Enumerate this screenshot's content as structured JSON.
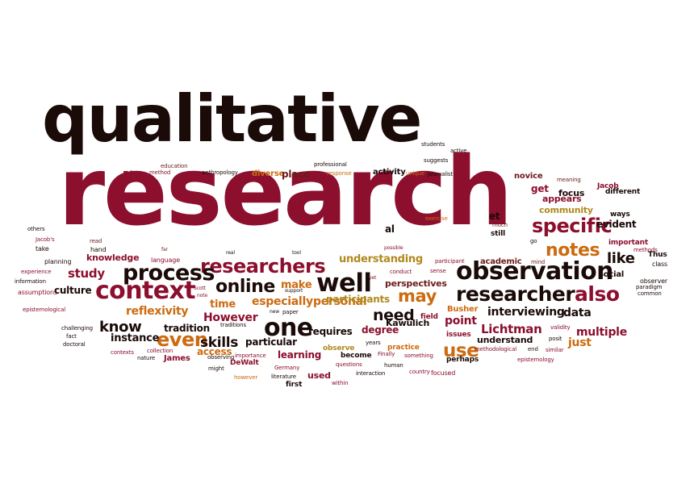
{
  "palette": {
    "dark": "#1a0a08",
    "crimson": "#8c0f2e",
    "darkred": "#6e1a1a",
    "orange": "#cc6b10",
    "gold": "#b08a1e",
    "brown": "#5a2a10"
  },
  "words": [
    {
      "text": "qualitative",
      "color": "dark"
    },
    {
      "text": "research",
      "color": "crimson"
    },
    {
      "text": "observation",
      "color": "dark"
    },
    {
      "text": "researchers",
      "color": "crimson"
    },
    {
      "text": "context",
      "color": "crimson"
    },
    {
      "text": "process",
      "color": "dark"
    },
    {
      "text": "researcher",
      "color": "dark"
    },
    {
      "text": "well",
      "color": "dark"
    },
    {
      "text": "online",
      "color": "dark"
    },
    {
      "text": "specific",
      "color": "crimson"
    },
    {
      "text": "notes",
      "color": "orange"
    },
    {
      "text": "also",
      "color": "crimson"
    },
    {
      "text": "may",
      "color": "orange"
    },
    {
      "text": "one",
      "color": "dark"
    },
    {
      "text": "even",
      "color": "orange"
    },
    {
      "text": "use",
      "color": "orange"
    },
    {
      "text": "need",
      "color": "dark"
    },
    {
      "text": "like",
      "color": "dark"
    },
    {
      "text": "data",
      "color": "dark"
    },
    {
      "text": "interviewing",
      "color": "dark"
    },
    {
      "text": "Lichtman",
      "color": "crimson"
    },
    {
      "text": "especially",
      "color": "orange"
    },
    {
      "text": "know",
      "color": "dark"
    },
    {
      "text": "reflexivity",
      "color": "orange"
    },
    {
      "text": "understanding",
      "color": "gold"
    },
    {
      "text": "personal",
      "color": "orange"
    },
    {
      "text": "study",
      "color": "crimson"
    },
    {
      "text": "skills",
      "color": "dark"
    },
    {
      "text": "However",
      "color": "crimson"
    },
    {
      "text": "point",
      "color": "crimson"
    },
    {
      "text": "PhD",
      "color": "crimson"
    },
    {
      "text": "diverse",
      "color": "orange"
    },
    {
      "text": "place",
      "color": "darkred"
    },
    {
      "text": "activity",
      "color": "dark"
    },
    {
      "text": "novice",
      "color": "darkred"
    },
    {
      "text": "get",
      "color": "crimson"
    },
    {
      "text": "community",
      "color": "gold"
    },
    {
      "text": "evident",
      "color": "dark"
    },
    {
      "text": "knowledge",
      "color": "crimson"
    },
    {
      "text": "academic",
      "color": "darkred"
    },
    {
      "text": "social",
      "color": "dark"
    },
    {
      "text": "culture",
      "color": "dark"
    },
    {
      "text": "time",
      "color": "orange"
    },
    {
      "text": "make",
      "color": "orange"
    },
    {
      "text": "perspectives",
      "color": "darkred"
    },
    {
      "text": "participants",
      "color": "gold"
    },
    {
      "text": "multiple",
      "color": "crimson"
    },
    {
      "text": "tradition",
      "color": "dark"
    },
    {
      "text": "instance",
      "color": "dark"
    },
    {
      "text": "particular",
      "color": "dark"
    },
    {
      "text": "requires",
      "color": "dark"
    },
    {
      "text": "degree",
      "color": "crimson"
    },
    {
      "text": "Kawulich",
      "color": "dark"
    },
    {
      "text": "field",
      "color": "crimson"
    },
    {
      "text": "understand",
      "color": "dark"
    },
    {
      "text": "just",
      "color": "orange"
    },
    {
      "text": "access",
      "color": "orange"
    },
    {
      "text": "learning",
      "color": "crimson"
    },
    {
      "text": "used",
      "color": "crimson"
    },
    {
      "text": "perhaps",
      "color": "dark"
    },
    {
      "text": "practice",
      "color": "orange"
    },
    {
      "text": "become",
      "color": "dark"
    },
    {
      "text": "observe",
      "color": "gold"
    },
    {
      "text": "focused",
      "color": "crimson"
    },
    {
      "text": "first",
      "color": "dark"
    },
    {
      "text": "issues",
      "color": "crimson"
    },
    {
      "text": "Busher",
      "color": "orange"
    },
    {
      "text": "DeWalt",
      "color": "crimson"
    },
    {
      "text": "James",
      "color": "crimson"
    },
    {
      "text": "et",
      "color": "dark"
    },
    {
      "text": "al",
      "color": "dark"
    },
    {
      "text": "still",
      "color": "dark"
    },
    {
      "text": "focus",
      "color": "dark"
    },
    {
      "text": "appears",
      "color": "crimson"
    },
    {
      "text": "different",
      "color": "dark"
    },
    {
      "text": "Jacob",
      "color": "crimson"
    },
    {
      "text": "important",
      "color": "crimson"
    },
    {
      "text": "ways",
      "color": "dark"
    },
    {
      "text": "Thus",
      "color": "dark"
    },
    {
      "text": "class",
      "color": "dark"
    },
    {
      "text": "observer",
      "color": "dark"
    },
    {
      "text": "common",
      "color": "dark"
    },
    {
      "text": "meaning",
      "color": "darkred"
    },
    {
      "text": "students",
      "color": "dark"
    },
    {
      "text": "active",
      "color": "dark"
    },
    {
      "text": "suggests",
      "color": "dark"
    },
    {
      "text": "professional",
      "color": "dark"
    },
    {
      "text": "education",
      "color": "darkred"
    },
    {
      "text": "method",
      "color": "crimson"
    },
    {
      "text": "anthropology",
      "color": "dark"
    },
    {
      "text": "response",
      "color": "orange"
    },
    {
      "text": "unique",
      "color": "orange"
    },
    {
      "text": "journalist",
      "color": "dark"
    },
    {
      "text": "exercise",
      "color": "orange"
    },
    {
      "text": "much",
      "color": "darkred"
    },
    {
      "text": "go",
      "color": "dark"
    },
    {
      "text": "mind",
      "color": "darkred"
    },
    {
      "text": "methods",
      "color": "crimson"
    },
    {
      "text": "paradigm",
      "color": "dark"
    },
    {
      "text": "others",
      "color": "dark"
    },
    {
      "text": "Jacob's",
      "color": "crimson"
    },
    {
      "text": "take",
      "color": "dark"
    },
    {
      "text": "planning",
      "color": "dark"
    },
    {
      "text": "read",
      "color": "darkred"
    },
    {
      "text": "hand",
      "color": "dark"
    },
    {
      "text": "far",
      "color": "darkred"
    },
    {
      "text": "language",
      "color": "crimson"
    },
    {
      "text": "real",
      "color": "dark"
    },
    {
      "text": "tool",
      "color": "dark"
    },
    {
      "text": "possible",
      "color": "crimson"
    },
    {
      "text": "participant",
      "color": "crimson"
    },
    {
      "text": "experience",
      "color": "crimson"
    },
    {
      "text": "information",
      "color": "dark"
    },
    {
      "text": "assumptions",
      "color": "crimson"
    },
    {
      "text": "epistemological",
      "color": "crimson"
    },
    {
      "text": "Scott",
      "color": "crimson"
    },
    {
      "text": "note",
      "color": "crimson"
    },
    {
      "text": "support",
      "color": "dark"
    },
    {
      "text": "yet",
      "color": "crimson"
    },
    {
      "text": "conduct",
      "color": "crimson"
    },
    {
      "text": "sense",
      "color": "crimson"
    },
    {
      "text": "new",
      "color": "dark"
    },
    {
      "text": "paper",
      "color": "dark"
    },
    {
      "text": "traditions",
      "color": "dark"
    },
    {
      "text": "challenging",
      "color": "dark"
    },
    {
      "text": "fact",
      "color": "dark"
    },
    {
      "text": "doctoral",
      "color": "dark"
    },
    {
      "text": "contexts",
      "color": "crimson"
    },
    {
      "text": "nature",
      "color": "dark"
    },
    {
      "text": "collection",
      "color": "crimson"
    },
    {
      "text": "observing",
      "color": "dark"
    },
    {
      "text": "importance",
      "color": "crimson"
    },
    {
      "text": "might",
      "color": "dark"
    },
    {
      "text": "however",
      "color": "orange"
    },
    {
      "text": "Germany",
      "color": "crimson"
    },
    {
      "text": "literature",
      "color": "dark"
    },
    {
      "text": "within",
      "color": "crimson"
    },
    {
      "text": "questions",
      "color": "crimson"
    },
    {
      "text": "interaction",
      "color": "dark"
    },
    {
      "text": "years",
      "color": "dark"
    },
    {
      "text": "Finally",
      "color": "crimson"
    },
    {
      "text": "human",
      "color": "dark"
    },
    {
      "text": "something",
      "color": "crimson"
    },
    {
      "text": "country",
      "color": "crimson"
    },
    {
      "text": "methodological",
      "color": "crimson"
    },
    {
      "text": "end",
      "color": "dark"
    },
    {
      "text": "similar",
      "color": "crimson"
    },
    {
      "text": "epistemology",
      "color": "crimson"
    },
    {
      "text": "posit",
      "color": "dark"
    },
    {
      "text": "validity",
      "color": "crimson"
    }
  ]
}
